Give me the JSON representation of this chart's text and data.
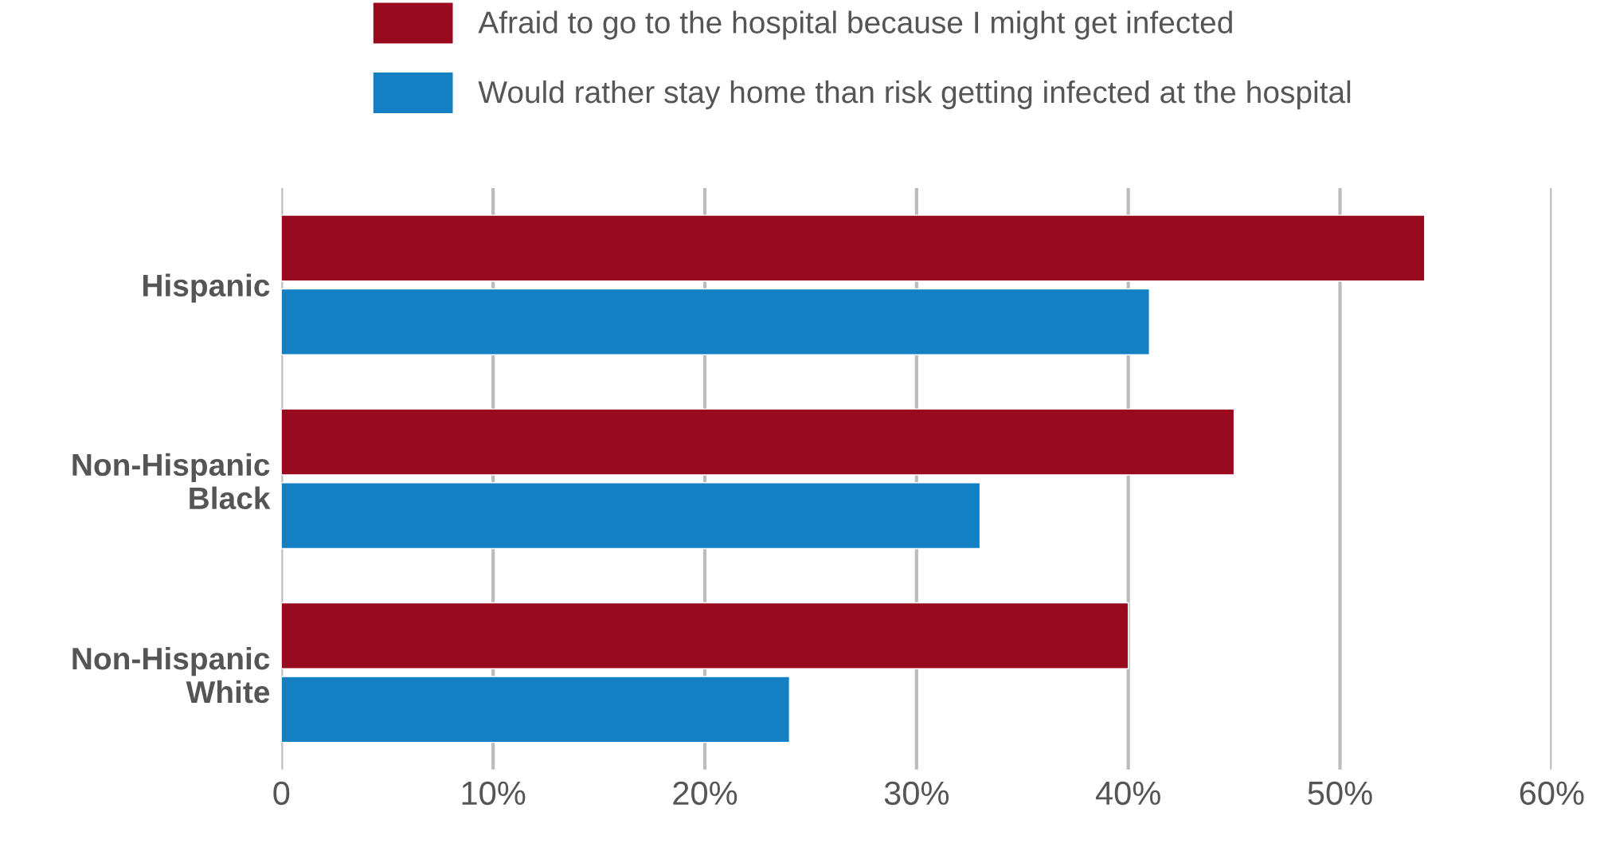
{
  "chart_data": {
    "type": "bar",
    "orientation": "horizontal",
    "categories": [
      "Hispanic",
      "Non-Hispanic\nBlack",
      "Non-Hispanic\nWhite"
    ],
    "series": [
      {
        "name": "Afraid to go to the hospital because I might get infected",
        "color": "#990a1f",
        "values": [
          54,
          45,
          40
        ]
      },
      {
        "name": "Would rather stay home than risk getting infected at the hospital",
        "color": "#1380c4",
        "values": [
          41,
          33,
          24
        ]
      }
    ],
    "xlim": [
      0,
      60
    ],
    "xticks": [
      0,
      {
        "value": 10,
        "label": "10%"
      },
      {
        "value": 20,
        "label": "20%"
      },
      {
        "value": 30,
        "label": "30%"
      },
      {
        "value": 40,
        "label": "40%"
      },
      {
        "value": 50,
        "label": "50%"
      },
      {
        "value": 60,
        "label": "60%"
      }
    ],
    "grid": "x",
    "legend": "top"
  }
}
